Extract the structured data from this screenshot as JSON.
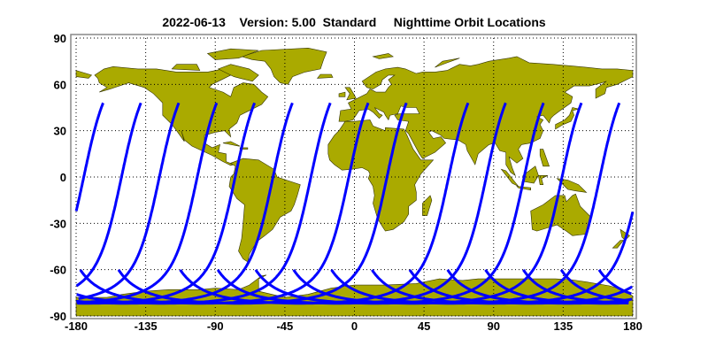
{
  "title": "2022-06-13    Version: 5.00  Standard     Nighttime Orbit Locations",
  "chart_data": {
    "type": "map",
    "projection": "equirectangular",
    "xlim": [
      -180,
      180
    ],
    "ylim": [
      -90,
      90
    ],
    "x_ticks": [
      "-180",
      "-135",
      "-90",
      "-45",
      "0",
      "45",
      "90",
      "135",
      "180"
    ],
    "y_ticks": [
      "90",
      "60",
      "30",
      "0",
      "-30",
      "-60",
      "-90"
    ],
    "grid": "dotted",
    "colors": {
      "land": "#aaaa00",
      "land_outline": "#333300",
      "orbit_track": "#0000ff",
      "frame": "#888888"
    },
    "orbit_tracks": {
      "start_lat": 48,
      "end_lat": -60,
      "start_lons": [
        -162.5,
        -138.1,
        -113.6,
        -89.1,
        -64.6,
        -40.1,
        -15.6,
        8.9,
        33.6,
        73.5,
        97.8,
        122.3,
        146.8,
        171.3
      ]
    }
  }
}
